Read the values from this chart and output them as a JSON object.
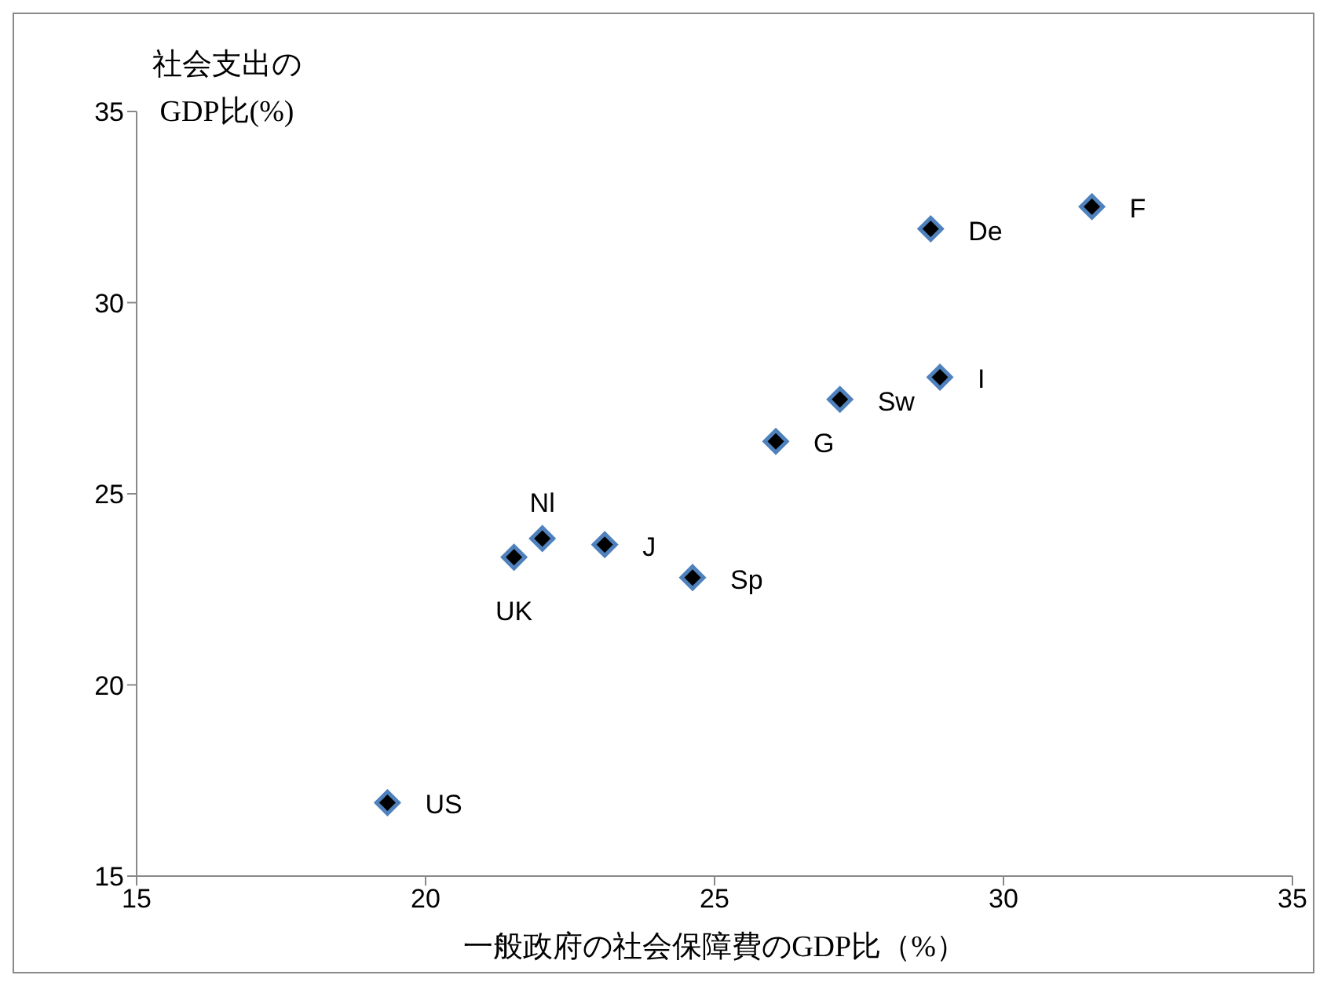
{
  "chart_data": {
    "type": "scatter",
    "xlabel": "一般政府の社会保障費のGDP比（%）",
    "ylabel": "社会支出の\nGDP比(%)",
    "xlim": [
      15,
      35
    ],
    "xticks": [
      15,
      20,
      25,
      30,
      35
    ],
    "ylim": [
      15,
      35
    ],
    "yticks": [
      15,
      20,
      25,
      30,
      35
    ],
    "grid": false,
    "marker": "diamond",
    "series": [
      {
        "color": "#000000",
        "x": [
          19.34,
          21.53,
          22.02,
          23.1,
          24.62,
          26.06,
          27.17,
          28.9,
          28.74,
          31.53
        ],
        "values": [
          16.92,
          23.34,
          23.83,
          23.67,
          22.81,
          26.37,
          27.47,
          28.05,
          31.93,
          32.51
        ]
      }
    ],
    "annotations": [
      {
        "text": "US",
        "x": 19.34,
        "y": 16.92
      },
      {
        "text": "UK",
        "x": 21.53,
        "y": 23.34
      },
      {
        "text": "Nl",
        "x": 22.02,
        "y": 23.83
      },
      {
        "text": "J",
        "x": 23.1,
        "y": 23.67
      },
      {
        "text": "Sp",
        "x": 24.62,
        "y": 22.81
      },
      {
        "text": "G",
        "x": 26.06,
        "y": 26.37
      },
      {
        "text": "Sw",
        "x": 27.17,
        "y": 27.47
      },
      {
        "text": "I",
        "x": 28.9,
        "y": 28.05
      },
      {
        "text": "De",
        "x": 28.74,
        "y": 31.93
      },
      {
        "text": "F",
        "x": 31.53,
        "y": 32.51
      }
    ]
  }
}
